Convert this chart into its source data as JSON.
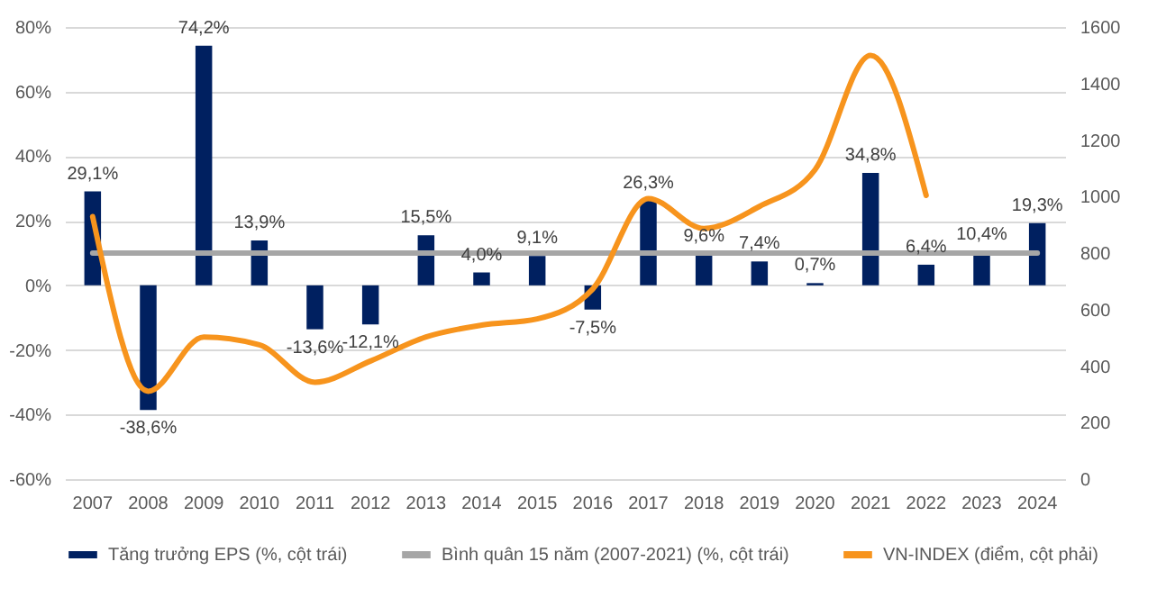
{
  "chart_data": {
    "type": "bar",
    "categories": [
      "2007",
      "2008",
      "2009",
      "2010",
      "2011",
      "2012",
      "2013",
      "2014",
      "2015",
      "2016",
      "2017",
      "2018",
      "2019",
      "2020",
      "2021",
      "2022",
      "2023",
      "2024"
    ],
    "series": [
      {
        "name": "Tăng trưởng EPS (%, cột trái)",
        "color": "#002060",
        "values": [
          29.1,
          -38.6,
          74.2,
          13.9,
          -13.6,
          -12.1,
          15.5,
          4.0,
          9.1,
          -7.5,
          26.3,
          9.6,
          7.4,
          0.7,
          34.8,
          6.4,
          10.4,
          19.3
        ],
        "value_labels": [
          "29,1%",
          "-38,6%",
          "74,2%",
          "13,9%",
          "-13,6%",
          "-12,1%",
          "15,5%",
          "4,0%",
          "9,1%",
          "-7,5%",
          "26,3%",
          "9,6%",
          "7,4%",
          "0,7%",
          "34,8%",
          "6,4%",
          "10,4%",
          "19,3%"
        ]
      },
      {
        "name": "Bình quân 15 năm (2007-2021) (%, cột trái)",
        "type": "line",
        "color": "#a6a6a6",
        "values": [
          10,
          10,
          10,
          10,
          10,
          10,
          10,
          10,
          10,
          10,
          10,
          10,
          10,
          10,
          10,
          10,
          10,
          10
        ]
      },
      {
        "name": "VN-INDEX (điểm, cột phải)",
        "type": "line",
        "axis": "y2",
        "color": "#f7941d",
        "values": [
          929,
          311,
          503,
          475,
          343,
          418,
          503,
          545,
          567,
          673,
          993,
          887,
          965,
          1095,
          1500,
          1004,
          null,
          null
        ]
      }
    ],
    "ylim": [
      -60,
      80
    ],
    "yticks": [
      {
        "value": -60,
        "label": "-60%"
      },
      {
        "value": -40,
        "label": "-40%"
      },
      {
        "value": -20,
        "label": "-20%"
      },
      {
        "value": 0,
        "label": "0%"
      },
      {
        "value": 20,
        "label": "20%"
      },
      {
        "value": 40,
        "label": "40%"
      },
      {
        "value": 60,
        "label": "60%"
      },
      {
        "value": 80,
        "label": "80%"
      }
    ],
    "y2lim": [
      0,
      1600
    ],
    "y2ticks": [
      0,
      200,
      400,
      600,
      800,
      1000,
      1200,
      1400,
      1600
    ],
    "grid": "y",
    "legend": "bottom"
  }
}
